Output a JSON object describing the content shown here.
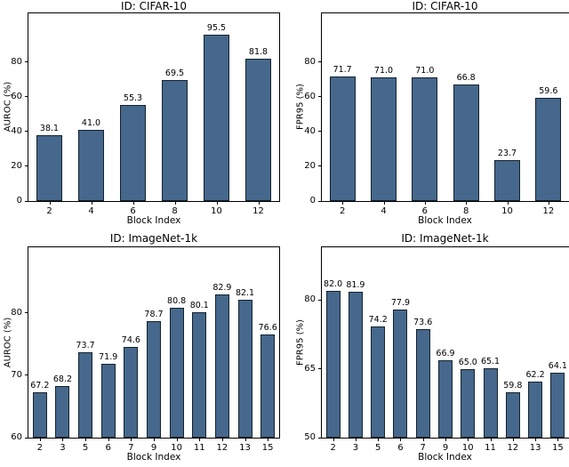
{
  "figure": {
    "background": "#ffffff",
    "bar_fill": "#45688c",
    "bar_edge": "#16222c",
    "text_color": "#000000"
  },
  "chart_data": [
    {
      "type": "bar",
      "title": "ID: CIFAR-10",
      "xlabel": "Block Index",
      "ylabel": "AUROC (%)",
      "categories": [
        "2",
        "4",
        "6",
        "8",
        "10",
        "12"
      ],
      "values": [
        38.1,
        41.0,
        55.3,
        69.5,
        95.5,
        81.8
      ],
      "yticks": [
        0,
        20,
        40,
        60,
        80
      ],
      "ylim": [
        0,
        108
      ],
      "grid": false,
      "legend": null
    },
    {
      "type": "bar",
      "title": "ID: CIFAR-10",
      "xlabel": "Block Index",
      "ylabel": "FPR95 (%)",
      "categories": [
        "2",
        "4",
        "6",
        "8",
        "10",
        "12"
      ],
      "values": [
        71.7,
        71.0,
        71.0,
        66.8,
        23.7,
        59.6
      ],
      "yticks": [
        0,
        20,
        40,
        60,
        80
      ],
      "ylim": [
        0,
        108
      ],
      "grid": false,
      "legend": null
    },
    {
      "type": "bar",
      "title": "ID: ImageNet-1k",
      "xlabel": "Block Index",
      "ylabel": "AUROC (%)",
      "categories": [
        "2",
        "3",
        "5",
        "6",
        "7",
        "9",
        "10",
        "11",
        "12",
        "13",
        "15"
      ],
      "values": [
        67.2,
        68.2,
        73.7,
        71.9,
        74.6,
        78.7,
        80.8,
        80.1,
        82.9,
        82.1,
        76.6
      ],
      "yticks": [
        60,
        70,
        80
      ],
      "ylim": [
        60,
        90.5
      ],
      "grid": false,
      "legend": null
    },
    {
      "type": "bar",
      "title": "ID: ImageNet-1k",
      "xlabel": "Block Index",
      "ylabel": "FPR95 (%)",
      "categories": [
        "2",
        "3",
        "5",
        "6",
        "7",
        "9",
        "10",
        "11",
        "12",
        "13",
        "15"
      ],
      "values": [
        82.0,
        81.9,
        74.2,
        77.9,
        73.6,
        66.9,
        65.0,
        65.1,
        59.8,
        62.2,
        64.1
      ],
      "yticks": [
        50,
        65,
        80
      ],
      "ylim": [
        50,
        91.5
      ],
      "grid": false,
      "legend": null
    }
  ]
}
